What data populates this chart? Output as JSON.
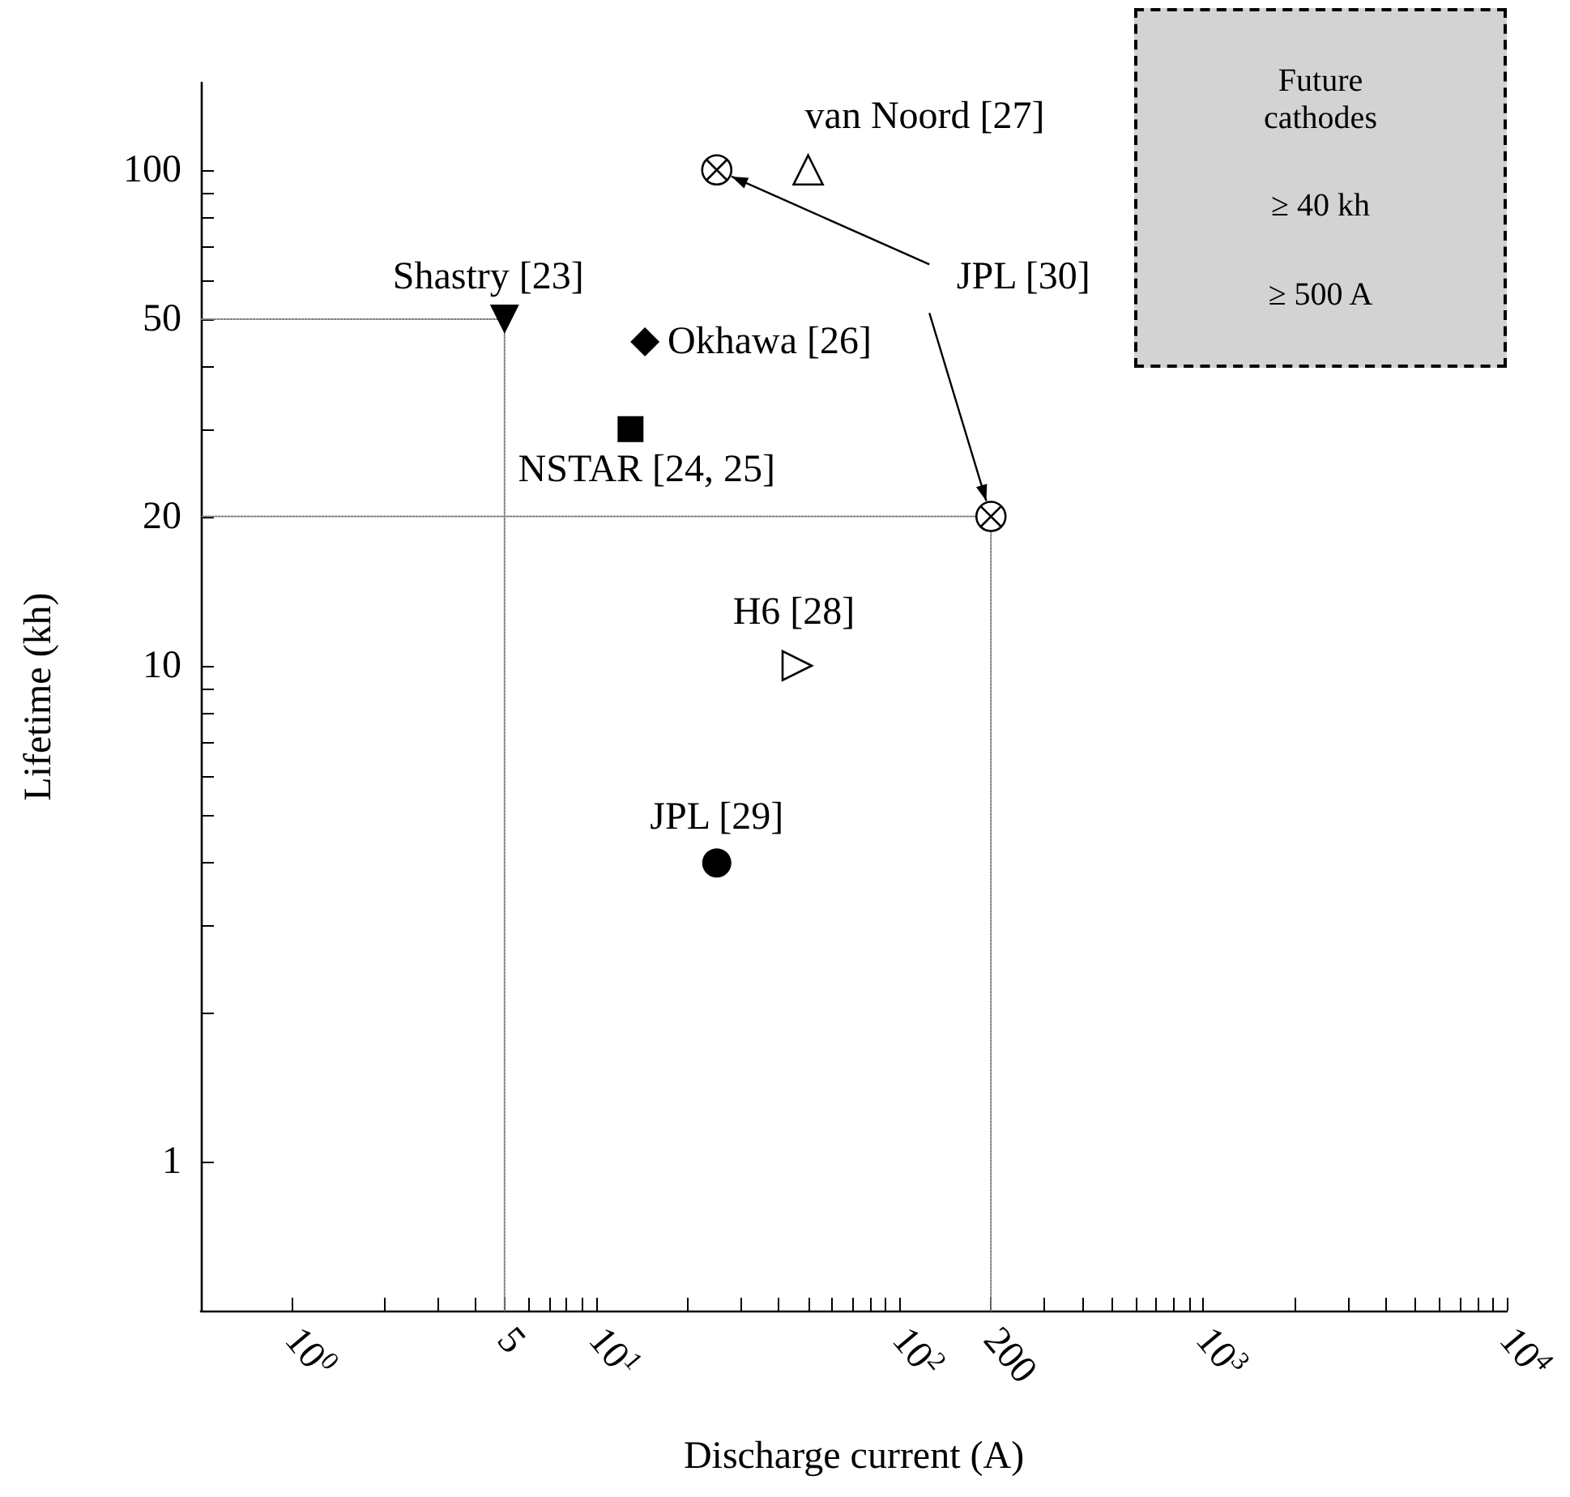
{
  "chart_data": {
    "type": "scatter",
    "xlabel": "Discharge current (A)",
    "ylabel": "Lifetime (kh)",
    "log": "xy",
    "grid": false,
    "legend": false,
    "xlim": [
      0.5,
      10000
    ],
    "ylim": [
      0.5,
      150
    ],
    "xticks": [
      {
        "value": 1,
        "label": "10$^{0}$"
      },
      {
        "value": 2,
        "label": null
      },
      {
        "value": 3,
        "label": null
      },
      {
        "value": 4,
        "label": null
      },
      5,
      {
        "value": 6,
        "label": null
      },
      {
        "value": 7,
        "label": null
      },
      {
        "value": 8,
        "label": null
      },
      {
        "value": 9,
        "label": null
      },
      {
        "value": 10,
        "label": "10$^{1}$"
      },
      {
        "value": 20,
        "label": null
      },
      {
        "value": 30,
        "label": null
      },
      {
        "value": 40,
        "label": null
      },
      {
        "value": 50,
        "label": null
      },
      {
        "value": 60,
        "label": null
      },
      {
        "value": 70,
        "label": null
      },
      {
        "value": 80,
        "label": null
      },
      {
        "value": 90,
        "label": null
      },
      {
        "value": 100,
        "label": "10$^{2}$"
      },
      200,
      {
        "value": 300,
        "label": null
      },
      {
        "value": 400,
        "label": null
      },
      {
        "value": 500,
        "label": null
      },
      {
        "value": 600,
        "label": null
      },
      {
        "value": 700,
        "label": null
      },
      {
        "value": 800,
        "label": null
      },
      {
        "value": 900,
        "label": null
      },
      {
        "value": 1000,
        "label": "10$^{3}$"
      },
      {
        "value": 2000,
        "label": null
      },
      {
        "value": 3000,
        "label": null
      },
      {
        "value": 4000,
        "label": null
      },
      {
        "value": 5000,
        "label": null
      },
      {
        "value": 6000,
        "label": null
      },
      {
        "value": 7000,
        "label": null
      },
      {
        "value": 8000,
        "label": null
      },
      {
        "value": 9000,
        "label": null
      },
      {
        "value": 10000,
        "label": "10$^{4}$"
      }
    ],
    "yticks": [
      1,
      {
        "value": 2,
        "label": null
      },
      {
        "value": 3,
        "label": null
      },
      {
        "value": 4,
        "label": null
      },
      {
        "value": 5,
        "label": null
      },
      {
        "value": 6,
        "label": null
      },
      {
        "value": 7,
        "label": null
      },
      {
        "value": 8,
        "label": null
      },
      {
        "value": 9,
        "label": null
      },
      10,
      20,
      {
        "value": 30,
        "label": null
      },
      {
        "value": 40,
        "label": null
      },
      50,
      {
        "value": 60,
        "label": null
      },
      {
        "value": 70,
        "label": null
      },
      {
        "value": 80,
        "label": null
      },
      {
        "value": 90,
        "label": null
      },
      100
    ],
    "annotations": [
      "Future cathodes",
      "≥ 40 kh",
      "≥ 500 A"
    ],
    "series": [
      {
        "name": "Shastry [23]",
        "color": "#000000",
        "marker": "triangle-down",
        "x": [
          5
        ],
        "values": [
          50
        ]
      },
      {
        "name": "NSTAR [24, 25]",
        "color": "#000000",
        "marker": "square",
        "x": [
          13
        ],
        "values": [
          30
        ]
      },
      {
        "name": "Okhawa [26]",
        "color": "#000000",
        "marker": "diamond",
        "x": [
          14.5
        ],
        "values": [
          45
        ]
      },
      {
        "name": "van Noord [27]",
        "color": "#000000",
        "marker": "triangle-open",
        "x": [
          50
        ],
        "values": [
          100
        ]
      },
      {
        "name": "JPL [30]",
        "color": "#000000",
        "marker": "cross",
        "x": [
          25,
          200
        ],
        "values": [
          100,
          20
        ]
      },
      {
        "name": "H6 [28]",
        "color": "#000000",
        "marker": "triangle-right-open",
        "x": [
          46
        ],
        "values": [
          10
        ]
      },
      {
        "name": "JPL [29]",
        "color": "#000000",
        "marker": "circle",
        "x": [
          25
        ],
        "values": [
          4
        ]
      },
      {
        "type": "line",
        "color": "#808080",
        "line_style": "dotted",
        "marker": "none",
        "x": [
          5,
          5,
          0.5
        ],
        "values": [
          0.5,
          50,
          50
        ]
      },
      {
        "type": "line",
        "color": "#808080",
        "line_style": "dotted",
        "marker": "none",
        "x": [
          200,
          200,
          0.5
        ],
        "values": [
          0.5,
          20,
          20
        ]
      }
    ]
  }
}
